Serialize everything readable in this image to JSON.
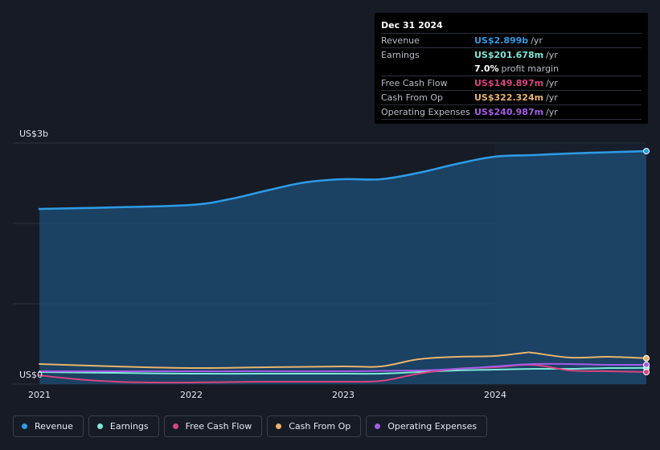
{
  "chart_data": {
    "type": "area",
    "y_axis": {
      "top_label": "US$3b",
      "bottom_label": "US$0",
      "ylim": [
        0,
        3.0
      ],
      "unit": "billion USD"
    },
    "x_ticks": [
      "2021",
      "2022",
      "2023",
      "2024"
    ],
    "series": [
      {
        "name": "Revenue",
        "color": "#2d9be5",
        "filled": true,
        "x": [
          2021.0,
          2021.5,
          2022.0,
          2022.25,
          2022.5,
          2022.75,
          2023.0,
          2023.25,
          2023.5,
          2023.75,
          2024.0,
          2024.25,
          2024.5,
          2024.75,
          2025.0
        ],
        "values": [
          2.18,
          2.2,
          2.23,
          2.3,
          2.41,
          2.51,
          2.55,
          2.55,
          2.63,
          2.74,
          2.83,
          2.85,
          2.87,
          2.885,
          2.899
        ]
      },
      {
        "name": "Earnings",
        "color": "#7ee8d8",
        "x": [
          2021.0,
          2021.5,
          2022.0,
          2022.5,
          2023.0,
          2023.25,
          2023.5,
          2023.75,
          2024.0,
          2024.25,
          2024.5,
          2024.75,
          2025.0
        ],
        "values": [
          0.15,
          0.14,
          0.13,
          0.13,
          0.13,
          0.13,
          0.15,
          0.17,
          0.18,
          0.19,
          0.19,
          0.2,
          0.2017
        ]
      },
      {
        "name": "Free Cash Flow",
        "color": "#d9457f",
        "x": [
          2021.0,
          2021.25,
          2021.5,
          2021.75,
          2022.0,
          2022.5,
          2023.0,
          2023.25,
          2023.5,
          2023.75,
          2024.0,
          2024.25,
          2024.5,
          2024.75,
          2025.0
        ],
        "values": [
          0.11,
          0.06,
          0.03,
          0.02,
          0.02,
          0.03,
          0.03,
          0.04,
          0.13,
          0.19,
          0.21,
          0.24,
          0.17,
          0.16,
          0.1499
        ]
      },
      {
        "name": "Cash From Op",
        "color": "#e9b46b",
        "x": [
          2021.0,
          2021.5,
          2022.0,
          2022.5,
          2023.0,
          2023.25,
          2023.5,
          2023.75,
          2024.0,
          2024.2,
          2024.25,
          2024.5,
          2024.75,
          2025.0
        ],
        "values": [
          0.25,
          0.22,
          0.2,
          0.21,
          0.22,
          0.22,
          0.31,
          0.34,
          0.35,
          0.39,
          0.39,
          0.33,
          0.34,
          0.3223
        ]
      },
      {
        "name": "Operating Expenses",
        "color": "#a45ce6",
        "x": [
          2021.0,
          2021.5,
          2022.0,
          2022.5,
          2023.0,
          2023.5,
          2023.75,
          2024.0,
          2024.25,
          2024.5,
          2024.75,
          2025.0
        ],
        "values": [
          0.16,
          0.16,
          0.16,
          0.16,
          0.16,
          0.17,
          0.19,
          0.22,
          0.25,
          0.25,
          0.24,
          0.241
        ]
      }
    ],
    "grid": true,
    "legend_position": "bottom-left"
  },
  "tooltip": {
    "date": "Dec 31 2024",
    "rows": [
      {
        "label": "Revenue",
        "value": "US$2.899b",
        "unit": "/yr",
        "color": "#2d9be5"
      },
      {
        "label": "Earnings",
        "value": "US$201.678m",
        "unit": "/yr",
        "color": "#7ee8d8"
      },
      {
        "label": "",
        "value": "7.0%",
        "unit": "profit margin",
        "color": "#ffffff",
        "sub": true
      },
      {
        "label": "Free Cash Flow",
        "value": "US$149.897m",
        "unit": "/yr",
        "color": "#d9457f"
      },
      {
        "label": "Cash From Op",
        "value": "US$322.324m",
        "unit": "/yr",
        "color": "#e9b46b"
      },
      {
        "label": "Operating Expenses",
        "value": "US$240.987m",
        "unit": "/yr",
        "color": "#a45ce6"
      }
    ]
  },
  "legend": [
    {
      "label": "Revenue",
      "color": "#2d9be5"
    },
    {
      "label": "Earnings",
      "color": "#7ee8d8"
    },
    {
      "label": "Free Cash Flow",
      "color": "#d9457f"
    },
    {
      "label": "Cash From Op",
      "color": "#e9b46b"
    },
    {
      "label": "Operating Expenses",
      "color": "#a45ce6"
    }
  ]
}
